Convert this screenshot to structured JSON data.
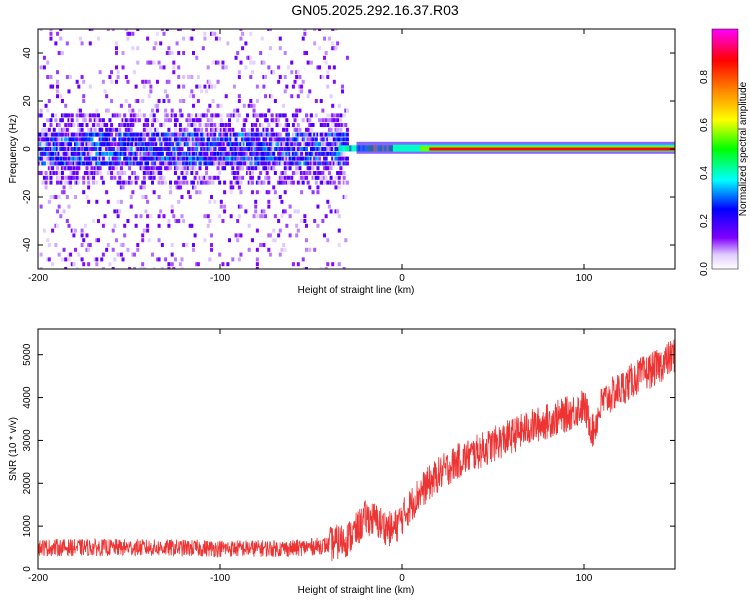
{
  "title": "GN05.2025.292.16.37.R03",
  "chart_data": [
    {
      "type": "heatmap",
      "title": "GN05.2025.292.16.37.R03",
      "xlabel": "Height of straight line (km)",
      "ylabel": "Frequency (Hz)",
      "xlim": [
        -200,
        150
      ],
      "ylim": [
        -50,
        50
      ],
      "xticks": [
        -200,
        -100,
        0,
        100
      ],
      "yticks": [
        -40,
        -20,
        0,
        20,
        40
      ],
      "colorbar": {
        "label": "Normalized spectral amplitude",
        "range": [
          0,
          1
        ],
        "ticks": [
          "0.0",
          "0.2",
          "0.4",
          "0.6",
          "0.8"
        ],
        "tick_values": [
          0.0,
          0.2,
          0.4,
          0.6,
          0.8
        ],
        "colormap": [
          "#ffffff",
          "#e8d8ff",
          "#8000ff",
          "#0000ff",
          "#00ffff",
          "#00ff00",
          "#ffff00",
          "#ff8000",
          "#ff0000",
          "#ff00ff"
        ]
      },
      "features": {
        "noise_region": [
          -200,
          -20
        ],
        "carrier_frequency_hz": 0,
        "carrier_strong_from_km": -25
      }
    },
    {
      "type": "line",
      "xlabel": "Height of straight line (km)",
      "ylabel": "SNR (10 * v/v)",
      "xlim": [
        -200,
        150
      ],
      "ylim": [
        0,
        5600
      ],
      "xticks": [
        -200,
        -100,
        0,
        100
      ],
      "yticks": [
        0,
        1000,
        2000,
        3000,
        4000,
        5000
      ],
      "color": "#ee3333",
      "x": [
        -200,
        -150,
        -100,
        -60,
        -40,
        -30,
        -25,
        -20,
        -15,
        -10,
        -5,
        0,
        10,
        20,
        30,
        40,
        50,
        60,
        70,
        80,
        90,
        100,
        105,
        110,
        120,
        130,
        140,
        150
      ],
      "y": [
        500,
        500,
        480,
        480,
        560,
        700,
        900,
        1200,
        1150,
        1000,
        900,
        1200,
        1800,
        2200,
        2500,
        2700,
        2900,
        3100,
        3300,
        3450,
        3600,
        3800,
        3200,
        3900,
        4200,
        4500,
        4700,
        5000
      ]
    }
  ]
}
